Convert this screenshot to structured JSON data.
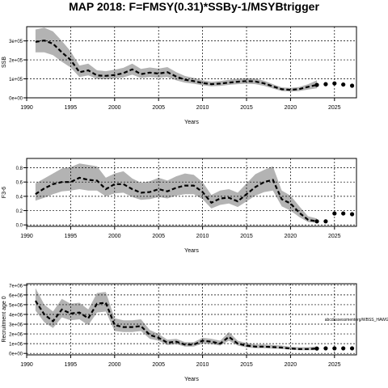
{
  "title": "MAP 2018: F=FMSY(0.31)*SSBy-1/MSYBtrigger",
  "colors": {
    "band": "#b3b3b3",
    "line": "#000000",
    "grid": "#000000",
    "background": "#ffffff"
  },
  "chart_data": [
    {
      "type": "line",
      "panel": "ssb",
      "ylabel": "SSB",
      "xlabel": "Years",
      "xlim": [
        1990,
        2027.5
      ],
      "ylim": [
        0,
        375000
      ],
      "xticks": [
        1990,
        1995,
        2000,
        2005,
        2010,
        2015,
        2020,
        2025
      ],
      "yticks": [
        0,
        100000,
        200000,
        300000
      ],
      "ytick_labels": [
        "0e+00",
        "1e+05",
        "2e+05",
        "3e+05"
      ],
      "grid": true,
      "series": [
        {
          "style": "median",
          "x": [
            1991,
            1992,
            1993,
            1994,
            1995,
            1996,
            1997,
            1998,
            1999,
            2000,
            2001,
            2002,
            2003,
            2004,
            2005,
            2006,
            2007,
            2008,
            2009,
            2010,
            2011,
            2012,
            2013,
            2014,
            2015,
            2016,
            2017,
            2018,
            2019,
            2020,
            2021,
            2022,
            2023
          ],
          "values": [
            295000,
            302000,
            285000,
            240000,
            200000,
            135000,
            145000,
            118000,
            116000,
            120000,
            130000,
            150000,
            125000,
            133000,
            128000,
            135000,
            112000,
            95000,
            88000,
            78000,
            72000,
            75000,
            80000,
            85000,
            88000,
            86000,
            76000,
            60000,
            45000,
            42000,
            46000,
            58000,
            68000
          ]
        },
        {
          "style": "interval_lower",
          "x": [
            1991,
            1992,
            1993,
            1994,
            1995,
            1996,
            1997,
            1998,
            1999,
            2000,
            2001,
            2002,
            2003,
            2004,
            2005,
            2006,
            2007,
            2008,
            2009,
            2010,
            2011,
            2012,
            2013,
            2014,
            2015,
            2016,
            2017,
            2018,
            2019,
            2020,
            2021,
            2022,
            2023
          ],
          "values": [
            240000,
            240000,
            225000,
            190000,
            160000,
            110000,
            118000,
            100000,
            98000,
            102000,
            108000,
            122000,
            105000,
            110000,
            106000,
            110000,
            92000,
            80000,
            74000,
            66000,
            61000,
            63000,
            68000,
            72000,
            74000,
            72000,
            63000,
            49000,
            36000,
            33000,
            36000,
            44000,
            50000
          ]
        },
        {
          "style": "interval_upper",
          "x": [
            1991,
            1992,
            1993,
            1994,
            1995,
            1996,
            1997,
            1998,
            1999,
            2000,
            2001,
            2002,
            2003,
            2004,
            2005,
            2006,
            2007,
            2008,
            2009,
            2010,
            2011,
            2012,
            2013,
            2014,
            2015,
            2016,
            2017,
            2018,
            2019,
            2020,
            2021,
            2022,
            2023
          ],
          "values": [
            360000,
            370000,
            350000,
            300000,
            245000,
            170000,
            180000,
            145000,
            140000,
            148000,
            158000,
            180000,
            152000,
            160000,
            154000,
            162000,
            135000,
            115000,
            105000,
            92000,
            85000,
            88000,
            95000,
            100000,
            103000,
            101000,
            90000,
            72000,
            55000,
            52000,
            57000,
            72000,
            92000
          ]
        },
        {
          "style": "projection_points",
          "x": [
            2023,
            2024,
            2025,
            2026,
            2027
          ],
          "values": [
            68000,
            72000,
            76000,
            70000,
            64000
          ]
        }
      ]
    },
    {
      "type": "line",
      "panel": "fishing_mortality",
      "ylabel": "F3-6",
      "xlabel": "Years",
      "xlim": [
        1990,
        2027.5
      ],
      "ylim": [
        -0.02,
        0.93
      ],
      "xticks": [
        1990,
        1995,
        2000,
        2005,
        2010,
        2015,
        2020,
        2025
      ],
      "yticks": [
        0,
        0.2,
        0.4,
        0.6,
        0.8
      ],
      "ytick_labels": [
        "0.0",
        "0.2",
        "0.4",
        "0.6",
        "0.8"
      ],
      "grid": true,
      "series": [
        {
          "style": "median",
          "x": [
            1991,
            1992,
            1993,
            1994,
            1995,
            1996,
            1997,
            1998,
            1999,
            2000,
            2001,
            2002,
            2003,
            2004,
            2005,
            2006,
            2007,
            2008,
            2009,
            2010,
            2011,
            2012,
            2013,
            2014,
            2015,
            2016,
            2017,
            2018,
            2019,
            2020,
            2021,
            2022,
            2023
          ],
          "values": [
            0.43,
            0.51,
            0.57,
            0.6,
            0.6,
            0.66,
            0.63,
            0.62,
            0.5,
            0.57,
            0.57,
            0.5,
            0.45,
            0.46,
            0.5,
            0.47,
            0.52,
            0.55,
            0.55,
            0.46,
            0.31,
            0.37,
            0.38,
            0.33,
            0.43,
            0.53,
            0.6,
            0.63,
            0.36,
            0.3,
            0.17,
            0.07,
            0.05
          ]
        },
        {
          "style": "interval_lower",
          "x": [
            1991,
            1992,
            1993,
            1994,
            1995,
            1996,
            1997,
            1998,
            1999,
            2000,
            2001,
            2002,
            2003,
            2004,
            2005,
            2006,
            2007,
            2008,
            2009,
            2010,
            2011,
            2012,
            2013,
            2014,
            2015,
            2016,
            2017,
            2018,
            2019,
            2020,
            2021,
            2022,
            2023
          ],
          "values": [
            0.34,
            0.38,
            0.43,
            0.47,
            0.48,
            0.5,
            0.48,
            0.48,
            0.4,
            0.44,
            0.45,
            0.39,
            0.35,
            0.36,
            0.39,
            0.37,
            0.41,
            0.43,
            0.43,
            0.36,
            0.23,
            0.28,
            0.3,
            0.25,
            0.33,
            0.41,
            0.46,
            0.48,
            0.26,
            0.2,
            0.11,
            0.04,
            0.03
          ]
        },
        {
          "style": "interval_upper",
          "x": [
            1991,
            1992,
            1993,
            1994,
            1995,
            1996,
            1997,
            1998,
            1999,
            2000,
            2001,
            2002,
            2003,
            2004,
            2005,
            2006,
            2007,
            2008,
            2009,
            2010,
            2011,
            2012,
            2013,
            2014,
            2015,
            2016,
            2017,
            2018,
            2019,
            2020,
            2021,
            2022,
            2023
          ],
          "values": [
            0.58,
            0.65,
            0.72,
            0.79,
            0.81,
            0.86,
            0.84,
            0.82,
            0.66,
            0.72,
            0.75,
            0.65,
            0.59,
            0.61,
            0.66,
            0.62,
            0.68,
            0.72,
            0.7,
            0.6,
            0.42,
            0.48,
            0.5,
            0.45,
            0.58,
            0.71,
            0.77,
            0.82,
            0.48,
            0.41,
            0.26,
            0.12,
            0.09
          ]
        },
        {
          "style": "projection_points",
          "x": [
            2023,
            2024,
            2025,
            2026,
            2027
          ],
          "values": [
            0.05,
            0.05,
            0.16,
            0.16,
            0.15
          ]
        }
      ]
    },
    {
      "type": "line",
      "panel": "recruitment",
      "ylabel": "Recruitment age 0",
      "xlabel": "Years",
      "xlim": [
        1990,
        2027.5
      ],
      "ylim": [
        -150000,
        7150000
      ],
      "xticks": [
        1990,
        1995,
        2000,
        2005,
        2010,
        2015,
        2020,
        2025
      ],
      "yticks": [
        0,
        1000000,
        2000000,
        3000000,
        4000000,
        5000000,
        6000000,
        7000000
      ],
      "ytick_labels": [
        "0e+00",
        "1e+06",
        "2e+06",
        "3e+06",
        "4e+06",
        "5e+06",
        "6e+06",
        "7e+06"
      ],
      "grid": true,
      "annotation": "abcdassessmentorg/WBSS_HAWG_2024-r17851, plt:3c87",
      "series": [
        {
          "style": "median",
          "x": [
            1991,
            1992,
            1993,
            1994,
            1995,
            1996,
            1997,
            1998,
            1999,
            2000,
            2001,
            2002,
            2003,
            2004,
            2005,
            2006,
            2007,
            2008,
            2009,
            2010,
            2011,
            2012,
            2013,
            2014,
            2015,
            2016,
            2017,
            2018,
            2019,
            2020,
            2021,
            2022,
            2023
          ],
          "values": [
            5400000,
            4000000,
            3300000,
            4500000,
            4100000,
            4200000,
            3600000,
            5100000,
            5200000,
            2900000,
            2700000,
            2700000,
            2800000,
            1900000,
            1600000,
            1100000,
            1200000,
            900000,
            900000,
            1300000,
            1200000,
            1000000,
            1700000,
            1000000,
            800000,
            700000,
            700000,
            650000,
            600000,
            500000,
            450000,
            450000,
            500000
          ]
        },
        {
          "style": "interval_lower",
          "x": [
            1991,
            1992,
            1993,
            1994,
            1995,
            1996,
            1997,
            1998,
            1999,
            2000,
            2001,
            2002,
            2003,
            2004,
            2005,
            2006,
            2007,
            2008,
            2009,
            2010,
            2011,
            2012,
            2013,
            2014,
            2015,
            2016,
            2017,
            2018,
            2019,
            2020,
            2021,
            2022,
            2023
          ],
          "values": [
            4400000,
            3200000,
            2600000,
            3700000,
            3400000,
            3500000,
            2900000,
            4200000,
            4300000,
            2300000,
            2200000,
            2200000,
            2300000,
            1500000,
            1300000,
            850000,
            950000,
            700000,
            700000,
            1000000,
            950000,
            800000,
            1300000,
            800000,
            620000,
            540000,
            540000,
            500000,
            460000,
            380000,
            330000,
            320000,
            340000
          ]
        },
        {
          "style": "interval_upper",
          "x": [
            1991,
            1992,
            1993,
            1994,
            1995,
            1996,
            1997,
            1998,
            1999,
            2000,
            2001,
            2002,
            2003,
            2004,
            2005,
            2006,
            2007,
            2008,
            2009,
            2010,
            2011,
            2012,
            2013,
            2014,
            2015,
            2016,
            2017,
            2018,
            2019,
            2020,
            2021,
            2022,
            2023
          ],
          "values": [
            6700000,
            5000000,
            4300000,
            5600000,
            5100000,
            5200000,
            4500000,
            6200000,
            6300000,
            3600000,
            3400000,
            3400000,
            3500000,
            2400000,
            2000000,
            1400000,
            1500000,
            1150000,
            1150000,
            1600000,
            1500000,
            1300000,
            2200000,
            1300000,
            1050000,
            920000,
            920000,
            860000,
            800000,
            680000,
            640000,
            640000,
            720000
          ]
        },
        {
          "style": "projection_points",
          "x": [
            2023,
            2024,
            2025,
            2026,
            2027
          ],
          "values": [
            500000,
            520000,
            520000,
            520000,
            520000
          ]
        }
      ]
    }
  ]
}
